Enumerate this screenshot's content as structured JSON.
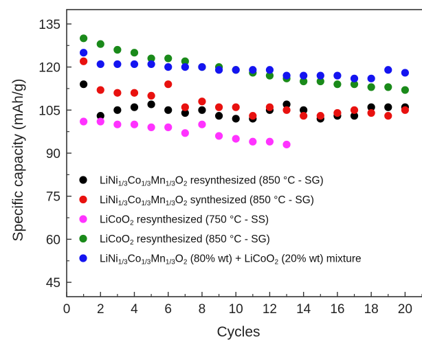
{
  "chart_data": {
    "type": "scatter",
    "title": "",
    "xlabel": "Cycles",
    "ylabel": "Specific capacity (mAh/g)",
    "xlim": [
      0,
      21
    ],
    "ylim": [
      40,
      140
    ],
    "xticks": [
      0,
      2,
      4,
      6,
      8,
      10,
      12,
      14,
      16,
      18,
      20
    ],
    "yticks": [
      45,
      60,
      75,
      90,
      105,
      120,
      135
    ],
    "grid": false,
    "legend_position": "bottom-left",
    "series": [
      {
        "name": "LiNi1/3Co1/3Mn1/3O2 resynthesized  (850 °C - SG)",
        "legend": {
          "pre": "LiNi",
          "sub1": "1/3",
          "mid1": "Co",
          "sub2": "1/3",
          "mid2": "Mn",
          "sub3": "1/3",
          "mid3": "O",
          "sub4": "2",
          "post": " resynthesized  (850 °C - SG)"
        },
        "color": "#000000",
        "x": [
          1,
          2,
          3,
          4,
          5,
          6,
          7,
          8,
          9,
          10,
          11,
          12,
          13,
          14,
          15,
          16,
          17,
          18,
          19,
          20
        ],
        "y": [
          114,
          103,
          105,
          106,
          107,
          105,
          104,
          105,
          103,
          102,
          102,
          105,
          107,
          105,
          102,
          103,
          103,
          106,
          106,
          106
        ]
      },
      {
        "name": "LiNi1/3Co1/3Mn1/3O2 synthesized (850 °C - SG)",
        "legend": {
          "pre": "LiNi",
          "sub1": "1/3",
          "mid1": "Co",
          "sub2": "1/3",
          "mid2": "Mn",
          "sub3": "1/3",
          "mid3": "O",
          "sub4": "2",
          "post": " synthesized (850 °C - SG)"
        },
        "color": "#e8110f",
        "x": [
          1,
          2,
          3,
          4,
          5,
          6,
          7,
          8,
          9,
          10,
          11,
          12,
          13,
          14,
          15,
          16,
          17,
          18,
          19,
          20
        ],
        "y": [
          122,
          112,
          111,
          111,
          110,
          114,
          106,
          108,
          106,
          106,
          103,
          106,
          105,
          103,
          103,
          104,
          105,
          104,
          103,
          105
        ]
      },
      {
        "name": "LiCoO2 resynthesized (750 °C - SS)",
        "legend": {
          "pre": "LiCoO",
          "sub1": "2",
          "post": " resynthesized (750 °C - SS)"
        },
        "color": "#ff33ff",
        "x": [
          1,
          2,
          3,
          4,
          5,
          6,
          7,
          8,
          9,
          10,
          11,
          12,
          13
        ],
        "y": [
          101,
          101,
          100,
          100,
          99,
          99,
          97,
          100,
          96,
          95,
          94,
          94,
          93
        ]
      },
      {
        "name": "LiCoO2 resynthesized (850 °C - SG)",
        "legend": {
          "pre": "LiCoO",
          "sub1": "2",
          "post": " resynthesized (850 °C - SG)"
        },
        "color": "#1a8a1a",
        "x": [
          1,
          2,
          3,
          4,
          5,
          6,
          7,
          8,
          9,
          10,
          11,
          12,
          13,
          14,
          15,
          16,
          17,
          18,
          19,
          20
        ],
        "y": [
          130,
          128,
          126,
          125,
          123,
          123,
          122,
          120,
          120,
          119,
          118,
          117,
          116,
          115,
          115,
          114,
          114,
          113,
          113,
          112
        ]
      },
      {
        "name": "LiNi1/3Co1/3Mn1/3O2 (80% wt) + LiCoO2 (20% wt) mixture",
        "legend": {
          "pre": "LiNi",
          "sub1": "1/3",
          "mid1": "Co",
          "sub2": "1/3",
          "mid2": "Mn",
          "sub3": "1/3",
          "mid3": "O",
          "sub4": "2",
          "post": " (80% wt) + LiCoO",
          "sub5": "2",
          "post2": " (20% wt) mixture"
        },
        "color": "#1414f0",
        "x": [
          1,
          2,
          3,
          4,
          5,
          6,
          7,
          8,
          9,
          10,
          11,
          12,
          13,
          14,
          15,
          16,
          17,
          18,
          19,
          20
        ],
        "y": [
          125,
          121,
          121,
          121,
          121,
          120,
          120,
          120,
          119,
          119,
          119,
          119,
          117,
          117,
          117,
          117,
          116,
          116,
          119,
          118
        ]
      }
    ]
  }
}
